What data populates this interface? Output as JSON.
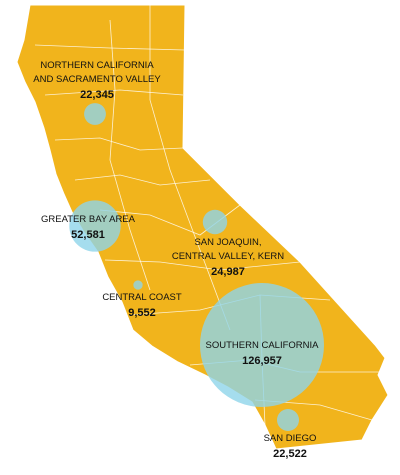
{
  "map": {
    "regions": [
      {
        "name_lines": [
          "NORTHERN CALIFORNIA",
          "AND SACRAMENTO VALLEY"
        ],
        "value": 22345,
        "value_label": "22,345"
      },
      {
        "name_lines": [
          "GREATER BAY AREA"
        ],
        "value": 52581,
        "value_label": "52,581"
      },
      {
        "name_lines": [
          "SAN JOAQUIN,",
          "CENTRAL VALLEY, KERN"
        ],
        "value": 24987,
        "value_label": "24,987"
      },
      {
        "name_lines": [
          "CENTRAL COAST"
        ],
        "value": 9552,
        "value_label": "9,552"
      },
      {
        "name_lines": [
          "SOUTHERN CALIFORNIA"
        ],
        "value": 126957,
        "value_label": "126,957"
      },
      {
        "name_lines": [
          "SAN DIEGO"
        ],
        "value": 22522,
        "value_label": "22,522"
      }
    ]
  }
}
